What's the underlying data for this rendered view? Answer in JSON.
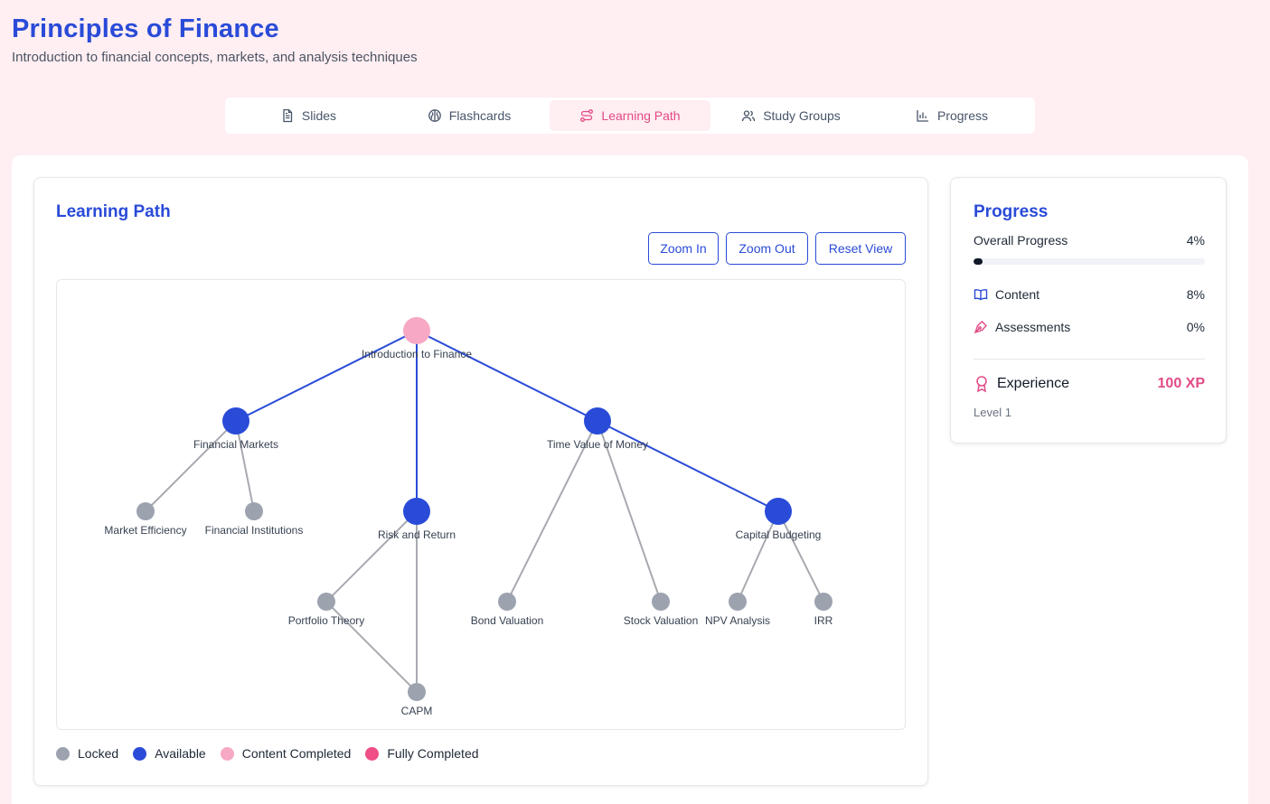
{
  "header": {
    "title": "Principles of Finance",
    "subtitle": "Introduction to financial concepts, markets, and analysis techniques"
  },
  "tabs": [
    {
      "label": "Slides",
      "icon": "document-icon",
      "active": false
    },
    {
      "label": "Flashcards",
      "icon": "brain-icon",
      "active": false
    },
    {
      "label": "Learning Path",
      "icon": "route-icon",
      "active": true
    },
    {
      "label": "Study Groups",
      "icon": "users-icon",
      "active": false
    },
    {
      "label": "Progress",
      "icon": "bar-chart-icon",
      "active": false
    }
  ],
  "learning_path": {
    "title": "Learning Path",
    "buttons": {
      "zoom_in": "Zoom In",
      "zoom_out": "Zoom Out",
      "reset": "Reset View"
    },
    "colors": {
      "locked": "#9ca3af",
      "available": "#2a4bd8",
      "content_completed": "#f7a8c4",
      "fully_completed": "#ef4e86",
      "active_edge": "#2a4bd8",
      "locked_edge": "#a8aab0"
    },
    "nodes": [
      {
        "id": "intro",
        "label": "Introduction to Finance",
        "status": "content_completed"
      },
      {
        "id": "markets",
        "label": "Financial Markets",
        "status": "available"
      },
      {
        "id": "tvm",
        "label": "Time Value of Money",
        "status": "available"
      },
      {
        "id": "efficiency",
        "label": "Market Efficiency",
        "status": "locked"
      },
      {
        "id": "institutions",
        "label": "Financial Institutions",
        "status": "locked"
      },
      {
        "id": "risk",
        "label": "Risk and Return",
        "status": "available"
      },
      {
        "id": "capbud",
        "label": "Capital Budgeting",
        "status": "available"
      },
      {
        "id": "portfolio",
        "label": "Portfolio Theory",
        "status": "locked"
      },
      {
        "id": "bond",
        "label": "Bond Valuation",
        "status": "locked"
      },
      {
        "id": "stock",
        "label": "Stock Valuation",
        "status": "locked"
      },
      {
        "id": "npv",
        "label": "NPV Analysis",
        "status": "locked"
      },
      {
        "id": "irr",
        "label": "IRR",
        "status": "locked"
      },
      {
        "id": "capm",
        "label": "CAPM",
        "status": "locked"
      }
    ],
    "edges": [
      {
        "from": "intro",
        "to": "markets",
        "active": true
      },
      {
        "from": "intro",
        "to": "risk",
        "active": true
      },
      {
        "from": "intro",
        "to": "tvm",
        "active": true
      },
      {
        "from": "tvm",
        "to": "capbud",
        "active": true
      },
      {
        "from": "markets",
        "to": "efficiency",
        "active": false
      },
      {
        "from": "markets",
        "to": "institutions",
        "active": false
      },
      {
        "from": "risk",
        "to": "portfolio",
        "active": false
      },
      {
        "from": "risk",
        "to": "capm",
        "active": false
      },
      {
        "from": "portfolio",
        "to": "capm",
        "active": false
      },
      {
        "from": "tvm",
        "to": "bond",
        "active": false
      },
      {
        "from": "tvm",
        "to": "stock",
        "active": false
      },
      {
        "from": "capbud",
        "to": "npv",
        "active": false
      },
      {
        "from": "capbud",
        "to": "irr",
        "active": false
      }
    ],
    "legend": [
      {
        "label": "Locked",
        "color": "#9ca3af"
      },
      {
        "label": "Available",
        "color": "#2a4bd8"
      },
      {
        "label": "Content Completed",
        "color": "#f7a8c4"
      },
      {
        "label": "Fully Completed",
        "color": "#ef4e86"
      }
    ]
  },
  "progress": {
    "title": "Progress",
    "overall_label": "Overall Progress",
    "overall_value": "4%",
    "overall_fraction": 0.04,
    "content_label": "Content",
    "content_value": "8%",
    "assessments_label": "Assessments",
    "assessments_value": "0%",
    "experience_label": "Experience",
    "experience_value": "100 XP",
    "level": "Level 1"
  }
}
